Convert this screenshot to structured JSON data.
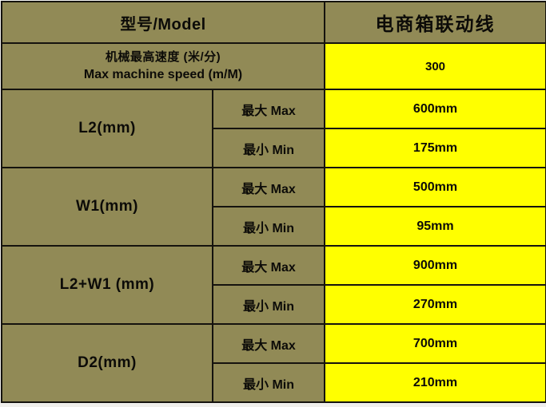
{
  "colors": {
    "background_olive": "#918a56",
    "value_yellow": "#ffff00",
    "grid_border": "#15130e",
    "text": "#0c0b08"
  },
  "header": {
    "model_label": "型号/Model",
    "product_name": "电商箱联动线"
  },
  "speed_row": {
    "label_zh": "机械最高速度 (米/分)",
    "label_en": "Max machine speed (m/M)",
    "value": "300"
  },
  "groups": [
    {
      "param": "L2(mm)",
      "max_label": "最大 Max",
      "max_value": "600mm",
      "min_label": "最小 Min",
      "min_value": "175mm"
    },
    {
      "param": "W1(mm)",
      "max_label": "最大 Max",
      "max_value": "500mm",
      "min_label": "最小 Min",
      "min_value": "95mm"
    },
    {
      "param": "L2+W1 (mm)",
      "max_label": "最大 Max",
      "max_value": "900mm",
      "min_label": "最小 Min",
      "min_value": "270mm"
    },
    {
      "param": "D2(mm)",
      "max_label": "最大 Max",
      "max_value": "700mm",
      "min_label": "最小 Min",
      "min_value": "210mm"
    }
  ]
}
